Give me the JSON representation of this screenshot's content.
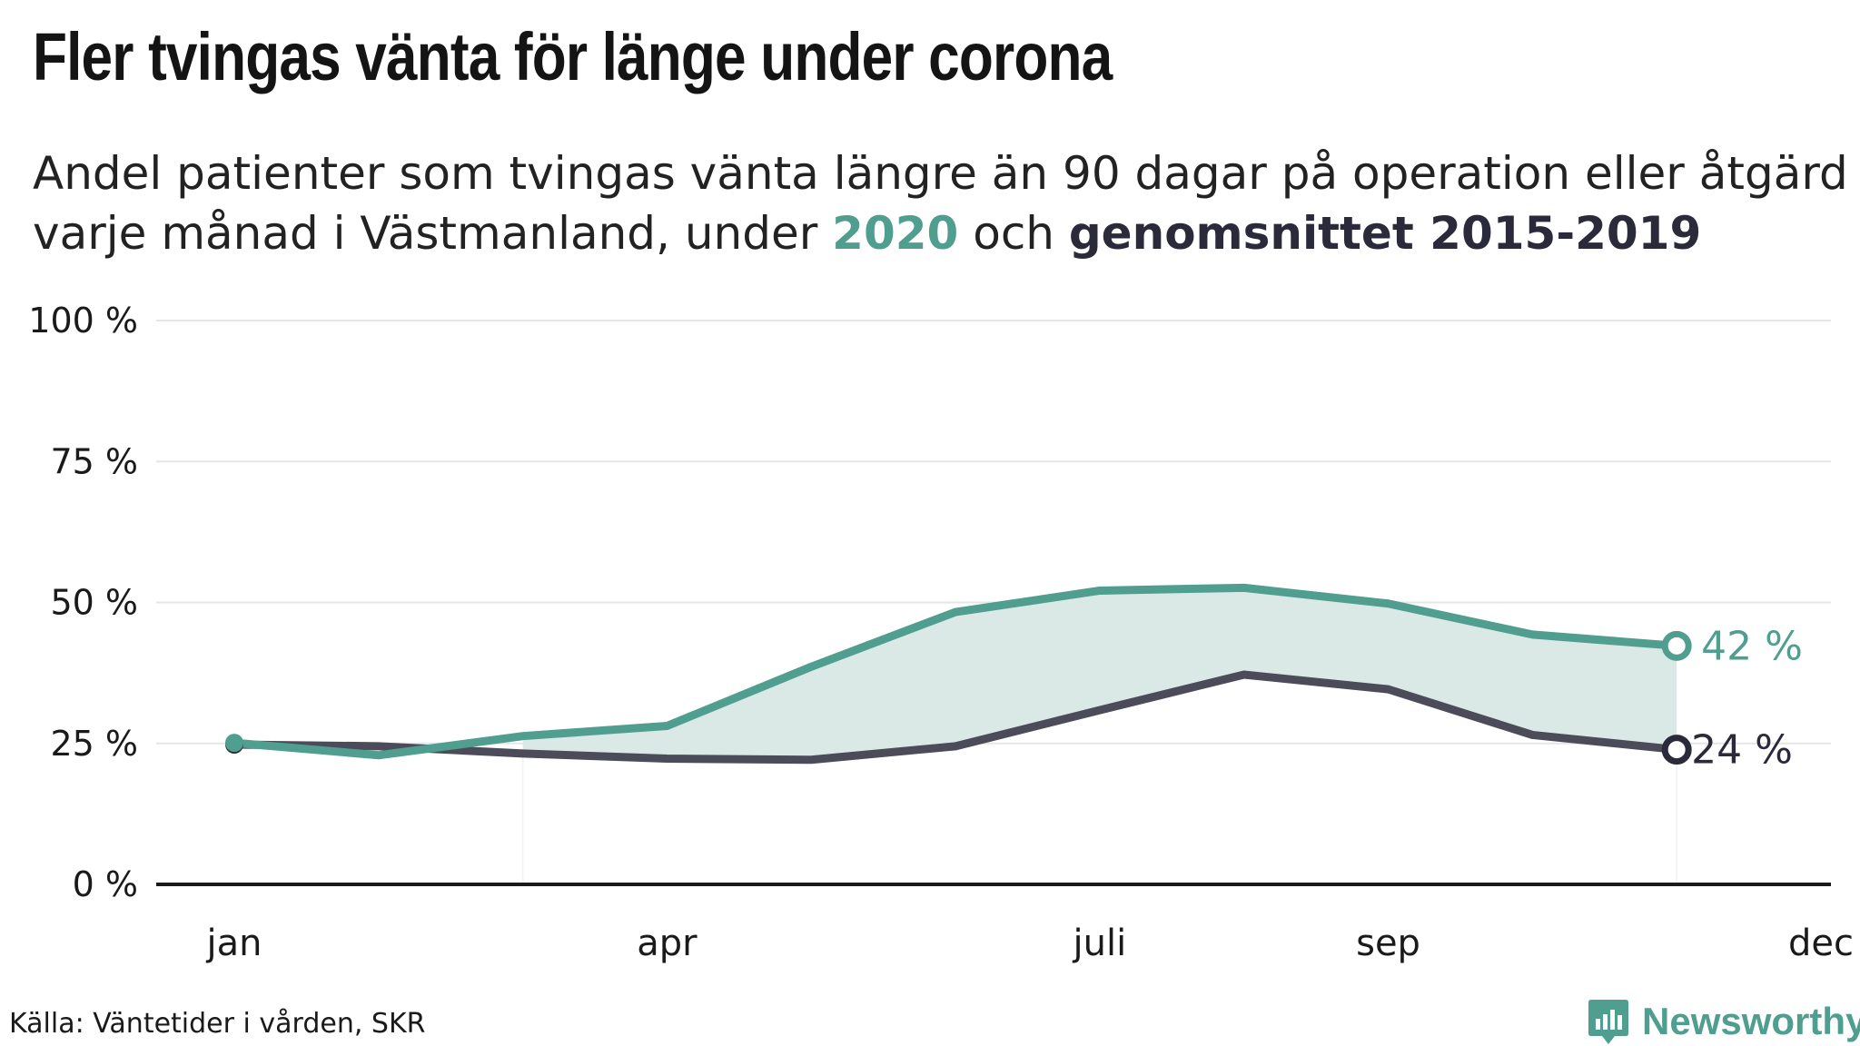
{
  "title": "Fler tvingas vänta för länge under corona",
  "subtitle": {
    "line1": "Andel patienter som tvingas vänta längre än 90 dagar på operation eller åtgärd",
    "line2_pre": "varje månad i Västmanland, under ",
    "highlight_2020": "2020",
    "line2_mid": " och ",
    "highlight_avg": "genomsnittet 2015-2019"
  },
  "source": "Källa: Väntetider i vården, SKR",
  "brand": "Newsworthy",
  "colors": {
    "series_2020": "#4f9e8f",
    "series_avg": "#4c4b5a",
    "band": "#dae9e6",
    "axis": "#1a1a1a",
    "grid": "#e6e6e6"
  },
  "chart_data": {
    "type": "line",
    "x": [
      1,
      2,
      3,
      4,
      5,
      6,
      7,
      8,
      9,
      10,
      11
    ],
    "xticks": [
      {
        "value": 1,
        "label": "jan"
      },
      {
        "value": 4,
        "label": "apr"
      },
      {
        "value": 7,
        "label": "juli"
      },
      {
        "value": 9,
        "label": "sep"
      },
      {
        "value": 12,
        "label": "dec"
      }
    ],
    "xlim": [
      1,
      12
    ],
    "ylim": [
      0,
      100
    ],
    "yticks": [
      {
        "value": 0,
        "label": "0 %"
      },
      {
        "value": 25,
        "label": "25 %"
      },
      {
        "value": 50,
        "label": "50 %"
      },
      {
        "value": 75,
        "label": "75 %"
      },
      {
        "value": 100,
        "label": "100 %"
      }
    ],
    "series": [
      {
        "name": "genomsnittet 2015-2019",
        "values": [
          24.8,
          24.5,
          23.2,
          22.3,
          22.1,
          24.5,
          30.9,
          37.2,
          34.6,
          26.5,
          23.9
        ],
        "end_label": "24 %"
      },
      {
        "name": "2020",
        "values": [
          25.1,
          22.9,
          26.3,
          28.1,
          38.6,
          48.3,
          52.1,
          52.6,
          49.8,
          44.3,
          42.3
        ],
        "end_label": "42 %"
      }
    ],
    "shaded_between_from": 3,
    "grid": true
  }
}
